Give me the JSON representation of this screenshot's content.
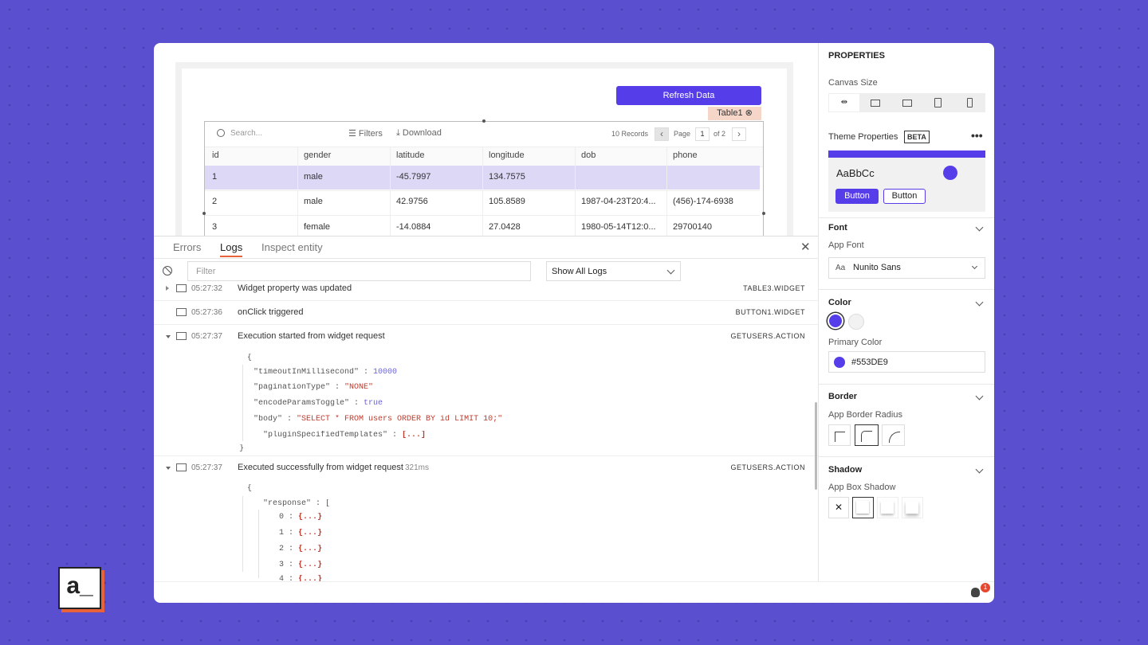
{
  "logo": "a_",
  "canvas": {
    "button": "Refresh Data",
    "widget_name": "Table1",
    "search_placeholder": "Search...",
    "filters": "Filters",
    "download": "Download",
    "records": "10 Records",
    "page_label": "Page",
    "page": "1",
    "page_of": "of 2",
    "columns": [
      "id",
      "gender",
      "latitude",
      "longitude",
      "dob",
      "phone"
    ],
    "rows": [
      [
        "1",
        "male",
        "-45.7997",
        "134.7575"
      ],
      [
        "2",
        "male",
        "42.9756",
        "105.8589",
        "1987-04-23T20:4...",
        "(456)-174-6938"
      ],
      [
        "3",
        "female",
        "-14.0884",
        "27.0428",
        "1980-05-14T12:0...",
        "29700140"
      ]
    ]
  },
  "debugger": {
    "tabs": [
      "Errors",
      "Logs",
      "Inspect entity"
    ],
    "filter_placeholder": "Filter",
    "log_select": "Show All Logs",
    "logs": [
      {
        "time": "05:27:32",
        "message": "Widget property was updated",
        "source": "TABLE3.WIDGET"
      },
      {
        "time": "05:27:36",
        "message": "onClick triggered",
        "source": "BUTTON1.WIDGET"
      },
      {
        "time": "05:27:37",
        "message": "Execution started from widget request",
        "source": "GETUSERS.ACTION",
        "details": [
          {
            "key": "{"
          },
          {
            "key": "\"timeoutInMillisecond\" :",
            "value": "10000"
          },
          {
            "key": "\"paginationType\" :",
            "value": "\"NONE\""
          },
          {
            "key": "\"encodeParamsToggle\" :",
            "value": "true"
          },
          {
            "key": "\"body\" :",
            "value": "\"SELECT * FROM users ORDER BY id LIMIT 10;\""
          },
          {
            "key": "\"pluginSpecifiedTemplates\" :",
            "value": "[...]"
          },
          {
            "key": "}"
          }
        ]
      },
      {
        "time": "05:27:37",
        "message": "Executed successfully from widget request",
        "duration": "321ms",
        "source": "GETUSERS.ACTION",
        "details": [
          {
            "key": "{"
          },
          {
            "key": "\"response\" : ["
          },
          {
            "key": "0 :",
            "value": "{...}"
          },
          {
            "key": "1 :",
            "value": "{...}"
          },
          {
            "key": "2 :",
            "value": "{...}"
          },
          {
            "key": "3 :",
            "value": "{...}"
          },
          {
            "key": "4 :",
            "value": "{...}"
          }
        ]
      }
    ],
    "badge": "1"
  },
  "properties": {
    "title": "PROPERTIES",
    "canvas_size": "Canvas Size",
    "theme": "Theme Properties",
    "beta": "BETA",
    "preview_text": "AaBbCc",
    "button_primary": "Button",
    "button_secondary": "Button",
    "font": {
      "section": "Font",
      "label": "App Font",
      "icon": "Aa",
      "value": "Nunito Sans"
    },
    "color": {
      "section": "Color",
      "label": "Primary Color",
      "value": "#553DE9"
    },
    "border": {
      "section": "Border",
      "label": "App Border Radius"
    },
    "shadow": {
      "section": "Shadow",
      "label": "App Box Shadow",
      "none": "✕"
    }
  }
}
